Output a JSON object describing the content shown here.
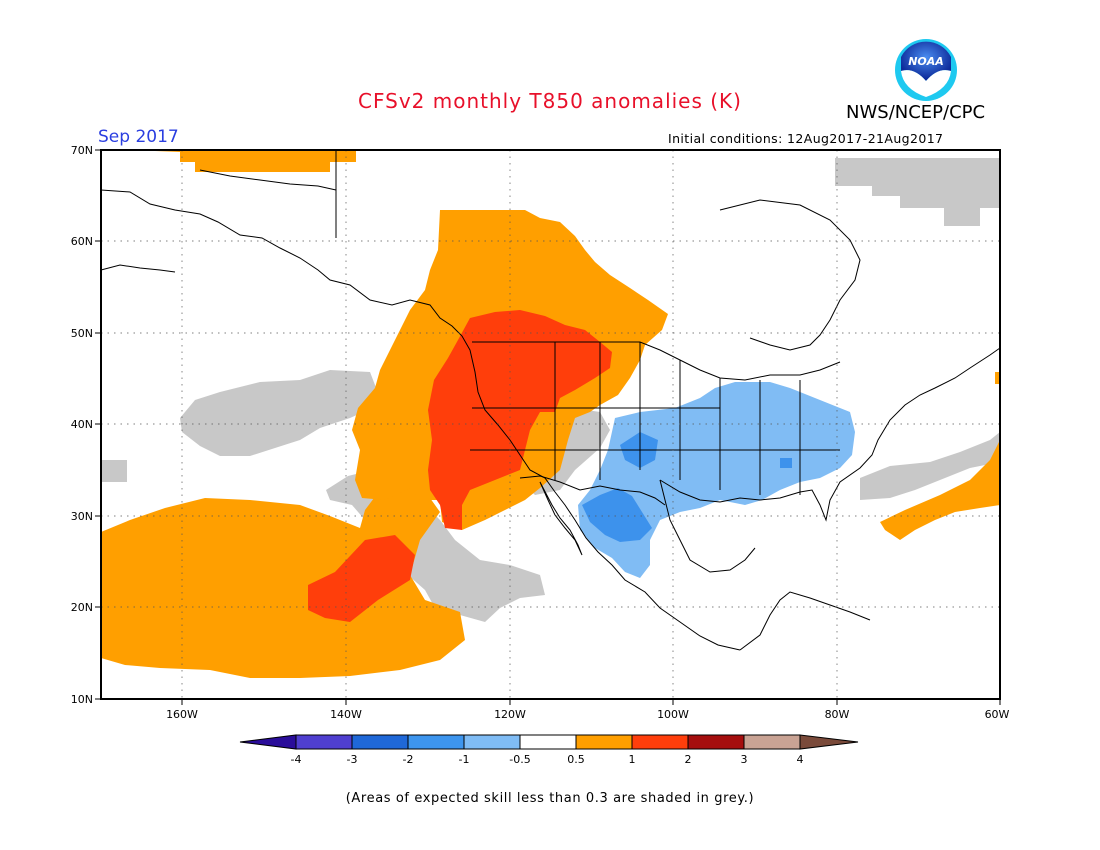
{
  "title": "CFSv2 monthly T850 anomalies (K)",
  "valid_period": "Sep 2017",
  "agency": "NWS/NCEP/CPC",
  "logo_text": "NOAA",
  "initial_conditions": "Initial conditions: 12Aug2017-21Aug2017",
  "footnote": "(Areas of expected skill less than 0.3 are shaded in grey.)",
  "map": {
    "lat_labels": [
      "70N",
      "60N",
      "50N",
      "40N",
      "30N",
      "20N",
      "10N"
    ],
    "lon_labels": [
      "160W",
      "140W",
      "120W",
      "100W",
      "80W",
      "60W"
    ]
  },
  "colorbar": {
    "labels": [
      "-4",
      "-3",
      "-2",
      "-1",
      "-0.5",
      "0.5",
      "1",
      "2",
      "3",
      "4"
    ],
    "colors": [
      "#2a0d9a",
      "#4f3fd0",
      "#1f68d8",
      "#3d95ee",
      "#7fbcf5",
      "#ffffff",
      "#ff9f00",
      "#ff3e0b",
      "#a50e0e",
      "#c9a394",
      "#7a4a3a"
    ]
  },
  "colors": {
    "skill_grey": "#c8c8c8",
    "warm_light": "#ff9f00",
    "warm_mid": "#ff3e0b",
    "cool_light": "#80bcf4",
    "cool_mid": "#3d92ec"
  }
}
